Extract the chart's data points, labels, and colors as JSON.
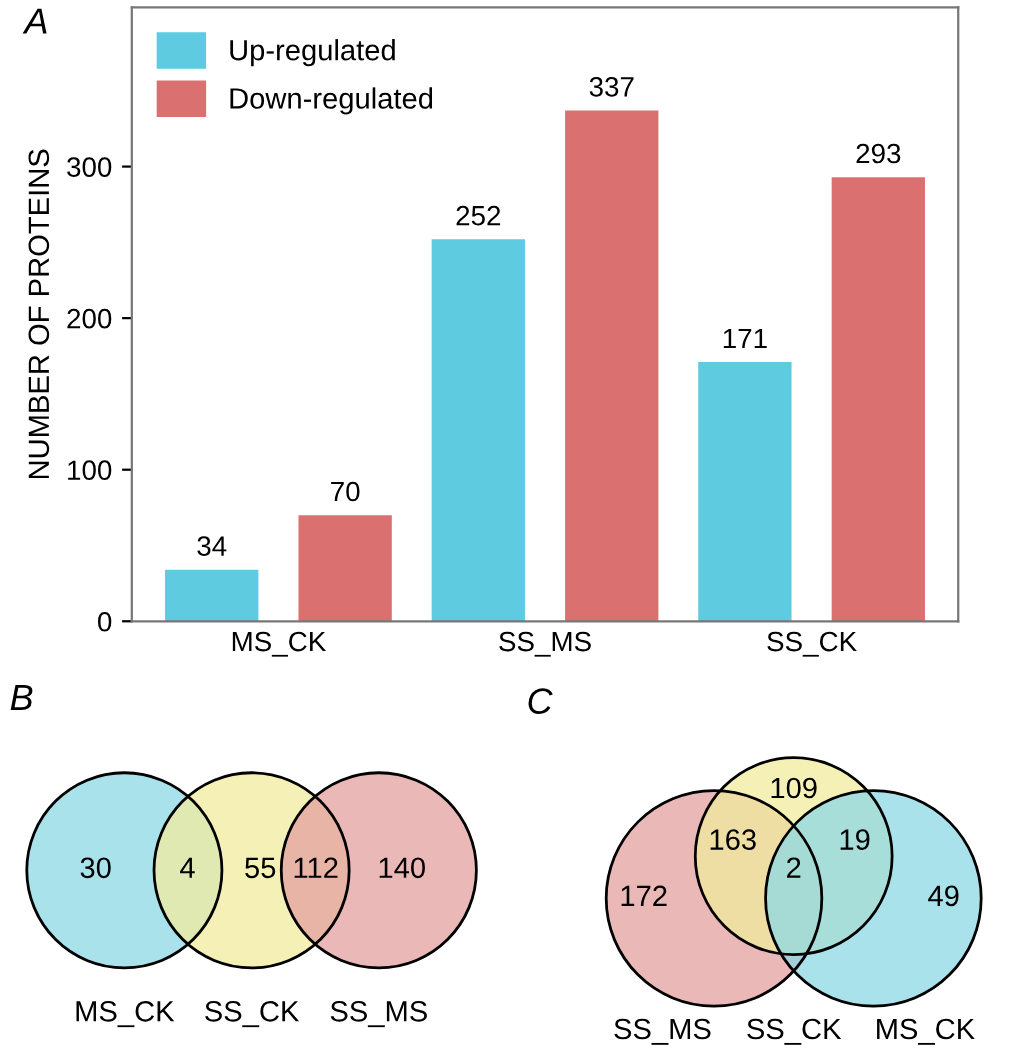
{
  "chart_data": [
    {
      "type": "bar",
      "title": "A",
      "ylabel": "NUMBER OF PROTEINS",
      "categories": [
        "MS_CK",
        "SS_MS",
        "SS_CK"
      ],
      "series": [
        {
          "name": "Up-regulated",
          "color": "#5ecbe0",
          "values": [
            34,
            252,
            171
          ]
        },
        {
          "name": "Down-regulated",
          "color": "#db7070",
          "values": [
            70,
            337,
            293
          ]
        }
      ],
      "ylim": [
        0,
        405
      ],
      "yticks": [
        0,
        100,
        200,
        300
      ],
      "data_labels": true,
      "legend": "top left",
      "grid": false
    },
    {
      "type": "other",
      "title": "B",
      "categories": [
        "MS_CK",
        "SS_CK",
        "SS_MS"
      ],
      "colors": [
        "#8dd8e6",
        "#f0eb9e",
        "#e4a0a0"
      ],
      "annotations": [
        "30",
        "4",
        "55",
        "112",
        "140"
      ]
    },
    {
      "type": "other",
      "title": "C",
      "categories": [
        "SS_MS",
        "SS_CK",
        "MS_CK"
      ],
      "colors": [
        "#e4a0a0",
        "#f0eb9e",
        "#8dd8e6"
      ],
      "annotations": [
        "172",
        "163",
        "109",
        "2",
        "19",
        "49"
      ]
    }
  ]
}
